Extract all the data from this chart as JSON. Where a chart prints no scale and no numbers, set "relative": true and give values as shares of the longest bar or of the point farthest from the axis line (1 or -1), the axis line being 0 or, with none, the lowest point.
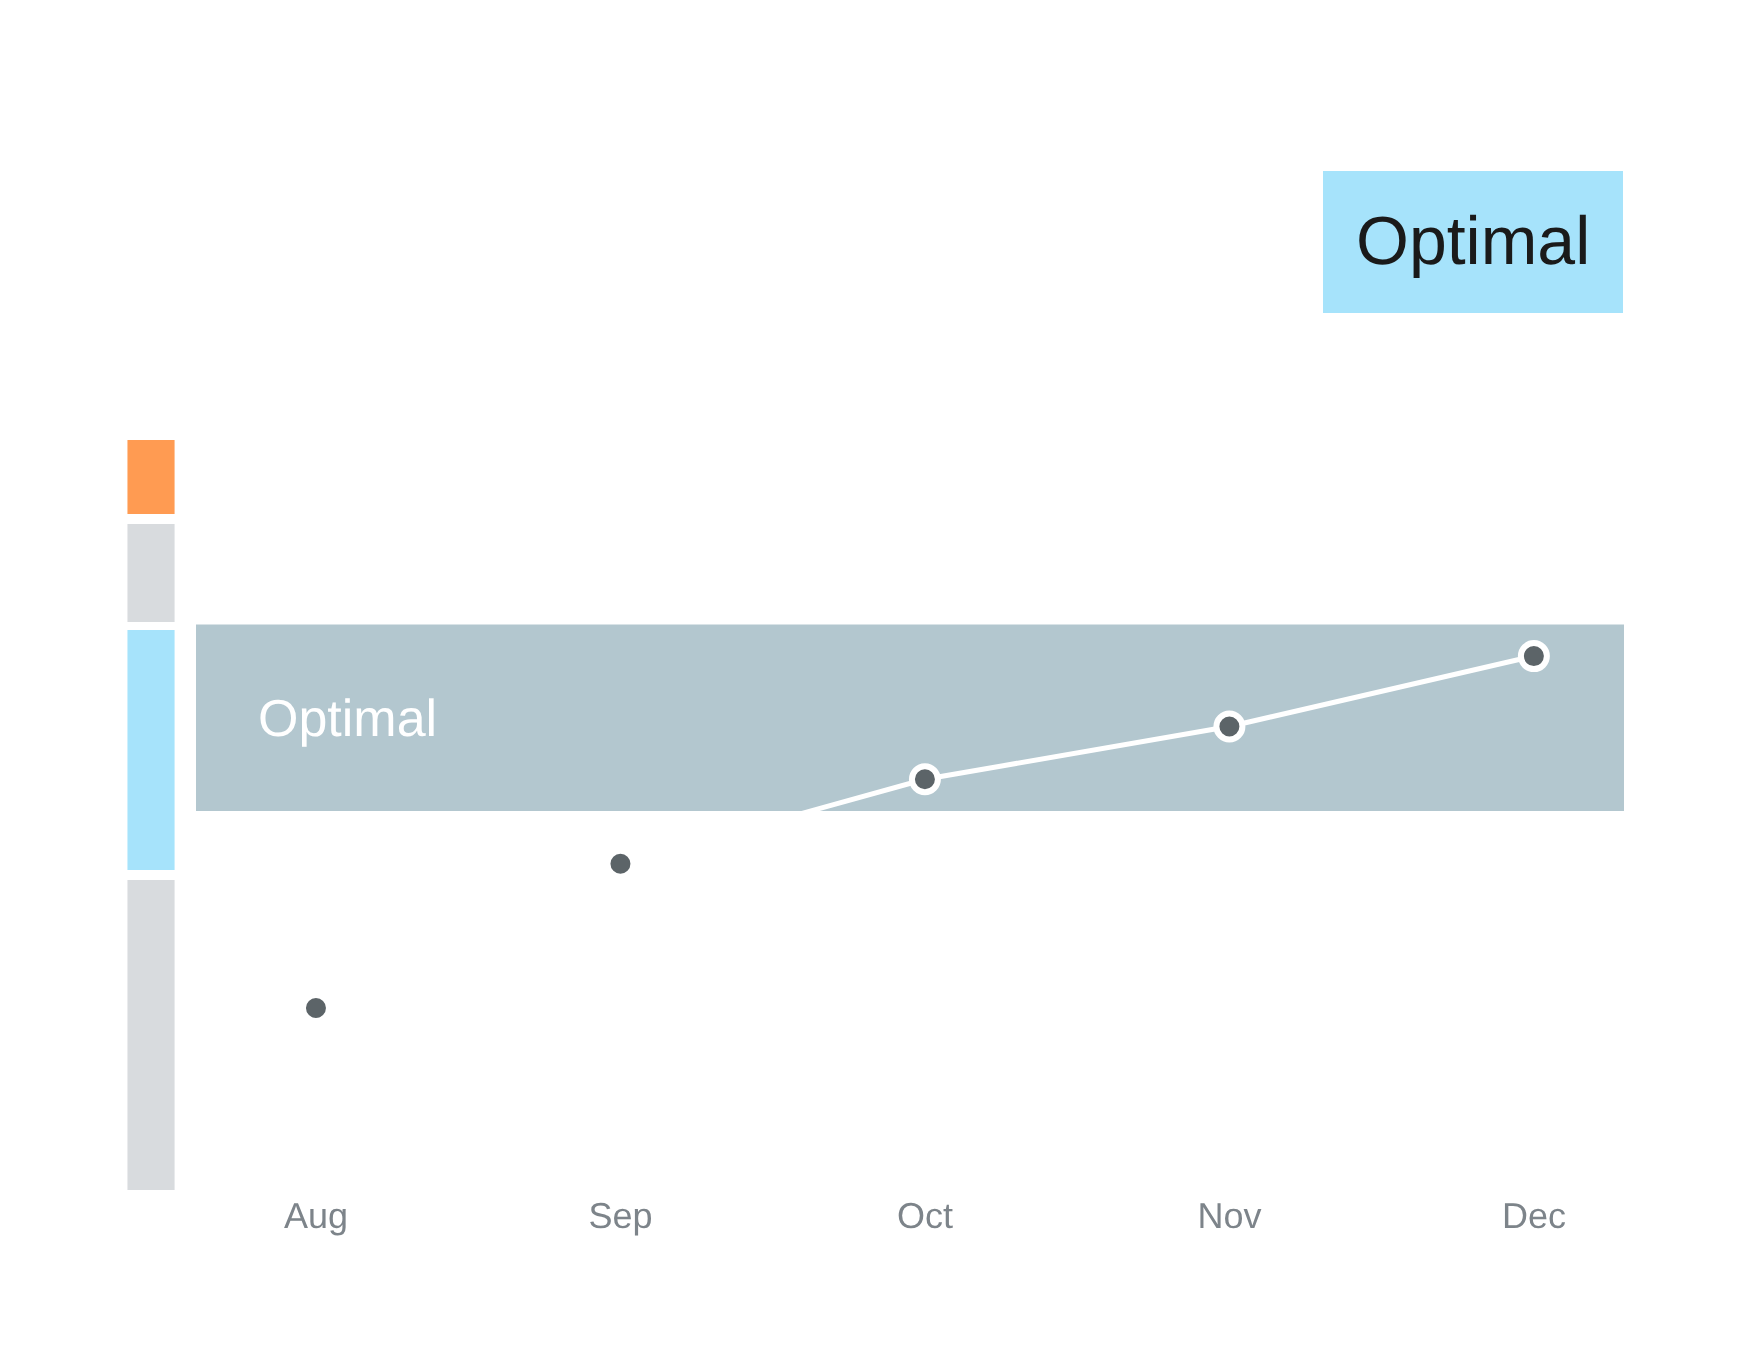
{
  "chart_data": {
    "type": "line",
    "relative": true,
    "categories": [
      "Aug",
      "Sep",
      "Oct",
      "Nov",
      "Dec"
    ],
    "series": [
      {
        "color": "#ffffff",
        "colors": [
          "#5c6468",
          "#5c6468",
          "#5c6468",
          "#5c6468",
          "#5c6468"
        ],
        "values": [
          0,
          0.41,
          0.65,
          0.8,
          1
        ]
      }
    ],
    "bands": [
      {
        "axis": "y",
        "from": 0.56,
        "to": 1.09,
        "label": "Optimal",
        "color": "#b3c7cf"
      }
    ],
    "annotations": [
      "Optimal"
    ],
    "marker": "circle",
    "line_style": "solid",
    "grid": false
  }
}
